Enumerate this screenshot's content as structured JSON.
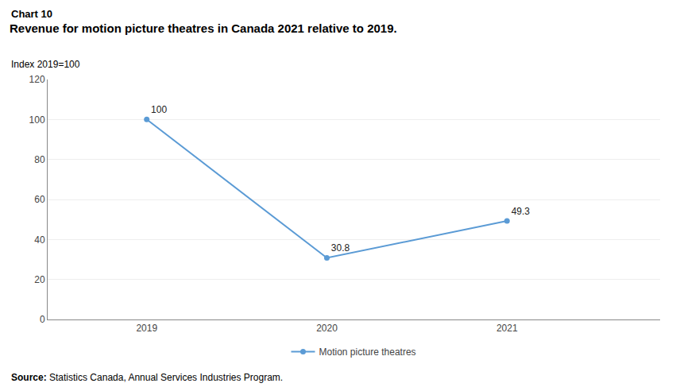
{
  "chart_data": {
    "type": "line",
    "title": "Revenue for motion picture theatres in Canada 2021 relative to 2019.",
    "ylabel": "Index 2019=100",
    "annotations": [
      "Chart 10",
      "Source: Statistics Canada, Annual Services Industries Program."
    ],
    "x": [
      2019,
      2020,
      2021
    ],
    "series": [
      {
        "name": "Motion picture theatres",
        "color": "#5b9bd5",
        "marker": "circle",
        "values": [
          100,
          30.8,
          49.3
        ]
      }
    ],
    "xlim": [
      2018.45,
      2021.85
    ],
    "xticks": [
      2019,
      2020,
      2021
    ],
    "ylim": [
      0,
      120
    ],
    "yticks": [
      0,
      20,
      40,
      60,
      80,
      100,
      120
    ],
    "grid": "y",
    "legend": "bottom",
    "data_labels": true
  }
}
